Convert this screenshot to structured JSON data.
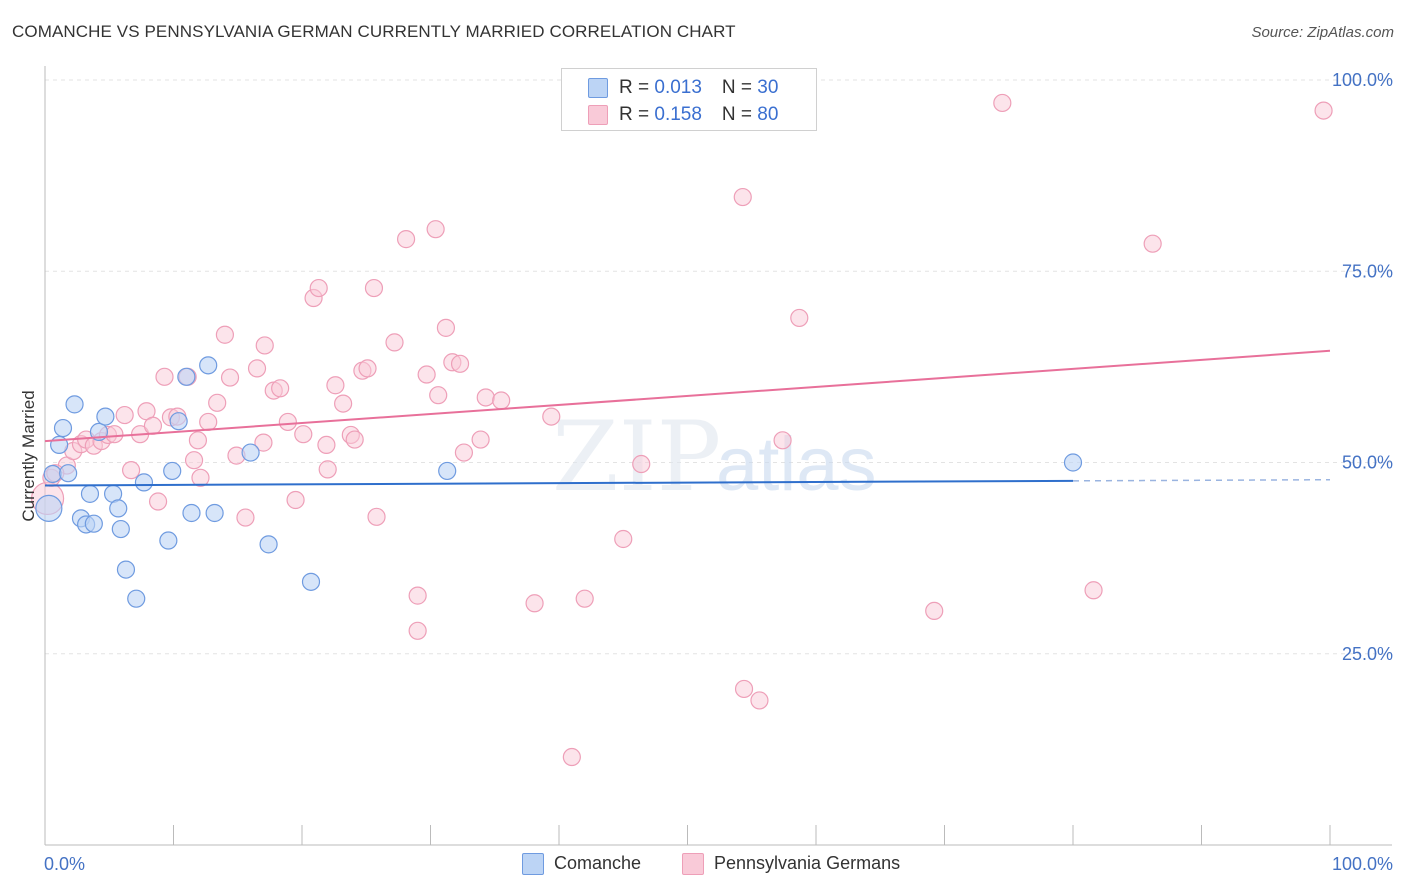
{
  "header": {
    "title": "COMANCHE VS PENNSYLVANIA GERMAN CURRENTLY MARRIED CORRELATION CHART",
    "source": "Source: ZipAtlas.com"
  },
  "colors": {
    "comanche_fill": "#bcd4f5",
    "comanche_stroke": "#6f9be0",
    "comanche_line": "#2f6fcc",
    "penn_fill": "#f9cad8",
    "penn_stroke": "#ee9fb8",
    "penn_line": "#e8709a",
    "label_blue": "#4472c4",
    "grid": "#e3e3e3"
  },
  "legend": {
    "rows": [
      {
        "r_label": "R = ",
        "r_value": "0.013",
        "n_label": "N = ",
        "n_value": "30"
      },
      {
        "r_label": "R = ",
        "r_value": "0.158",
        "n_label": "N = ",
        "n_value": "80"
      }
    ]
  },
  "bottom_legend": {
    "series1": "Comanche",
    "series2": "Pennsylvania Germans"
  },
  "watermark": {
    "zip": "ZIP",
    "atlas": "atlas"
  },
  "chart_data": {
    "type": "scatter",
    "title": "COMANCHE VS PENNSYLVANIA GERMAN CURRENTLY MARRIED CORRELATION CHART",
    "xlabel": "",
    "ylabel": "Currently Married",
    "xlim": [
      0,
      100
    ],
    "ylim": [
      0,
      100
    ],
    "x_tick_labels": {
      "left": "0.0%",
      "right": "100.0%"
    },
    "y_tick_labels": [
      {
        "value": 100,
        "label": "100.0%"
      },
      {
        "value": 75,
        "label": "75.0%"
      },
      {
        "value": 50,
        "label": "50.0%"
      },
      {
        "value": 25,
        "label": "25.0%"
      }
    ],
    "series": [
      {
        "name": "Comanche",
        "r": 0.013,
        "n": 30,
        "trend": {
          "x": [
            0,
            80
          ],
          "y": [
            47.0,
            47.6
          ],
          "dashed_extension": [
            80,
            100
          ]
        },
        "points": [
          [
            0.3,
            44.0
          ],
          [
            0.6,
            48.5
          ],
          [
            1.1,
            52.3
          ],
          [
            1.4,
            54.5
          ],
          [
            1.8,
            48.6
          ],
          [
            2.3,
            57.6
          ],
          [
            2.8,
            42.7
          ],
          [
            3.2,
            41.9
          ],
          [
            3.5,
            45.9
          ],
          [
            3.8,
            42.0
          ],
          [
            4.2,
            54.0
          ],
          [
            4.7,
            56.0
          ],
          [
            5.3,
            45.9
          ],
          [
            5.7,
            44.0
          ],
          [
            5.9,
            41.3
          ],
          [
            6.3,
            36.0
          ],
          [
            7.1,
            32.2
          ],
          [
            7.7,
            47.4
          ],
          [
            9.6,
            39.8
          ],
          [
            9.9,
            48.9
          ],
          [
            10.4,
            55.4
          ],
          [
            11.0,
            61.2
          ],
          [
            11.4,
            43.4
          ],
          [
            12.7,
            62.7
          ],
          [
            13.2,
            43.4
          ],
          [
            16.0,
            51.3
          ],
          [
            17.4,
            39.3
          ],
          [
            20.7,
            34.4
          ],
          [
            31.3,
            48.9
          ],
          [
            80.0,
            50.0
          ]
        ]
      },
      {
        "name": "Pennsylvania Germans",
        "r": 0.158,
        "n": 80,
        "trend": {
          "x": [
            0,
            100
          ],
          "y": [
            52.8,
            64.6
          ]
        },
        "points": [
          [
            0.2,
            45.3
          ],
          [
            0.5,
            48.0
          ],
          [
            1.7,
            49.6
          ],
          [
            2.2,
            51.5
          ],
          [
            2.8,
            52.4
          ],
          [
            3.2,
            53.0
          ],
          [
            3.8,
            52.2
          ],
          [
            4.4,
            52.8
          ],
          [
            4.9,
            53.6
          ],
          [
            5.4,
            53.7
          ],
          [
            6.2,
            56.2
          ],
          [
            6.7,
            49.0
          ],
          [
            7.4,
            53.7
          ],
          [
            7.9,
            56.7
          ],
          [
            8.4,
            54.8
          ],
          [
            8.8,
            44.9
          ],
          [
            9.3,
            61.2
          ],
          [
            9.8,
            55.9
          ],
          [
            10.3,
            56.0
          ],
          [
            11.1,
            61.2
          ],
          [
            11.6,
            50.3
          ],
          [
            11.9,
            52.9
          ],
          [
            12.7,
            55.3
          ],
          [
            13.4,
            57.8
          ],
          [
            14.0,
            66.7
          ],
          [
            14.4,
            61.1
          ],
          [
            14.9,
            50.9
          ],
          [
            15.6,
            42.8
          ],
          [
            16.5,
            62.3
          ],
          [
            17.1,
            65.3
          ],
          [
            17.0,
            52.6
          ],
          [
            17.8,
            59.4
          ],
          [
            18.3,
            59.7
          ],
          [
            18.9,
            55.3
          ],
          [
            19.5,
            45.1
          ],
          [
            20.1,
            53.7
          ],
          [
            20.9,
            71.5
          ],
          [
            21.3,
            72.8
          ],
          [
            21.9,
            52.3
          ],
          [
            22.6,
            60.1
          ],
          [
            23.2,
            57.7
          ],
          [
            23.8,
            53.6
          ],
          [
            24.1,
            53.0
          ],
          [
            24.7,
            62.0
          ],
          [
            25.1,
            62.3
          ],
          [
            25.6,
            72.8
          ],
          [
            25.8,
            42.9
          ],
          [
            27.2,
            65.7
          ],
          [
            28.1,
            79.2
          ],
          [
            29.0,
            32.6
          ],
          [
            29.0,
            28.0
          ],
          [
            29.7,
            61.5
          ],
          [
            30.4,
            80.5
          ],
          [
            30.6,
            58.8
          ],
          [
            31.2,
            67.6
          ],
          [
            31.7,
            63.1
          ],
          [
            32.3,
            62.9
          ],
          [
            32.6,
            51.3
          ],
          [
            33.9,
            53.0
          ],
          [
            34.3,
            58.5
          ],
          [
            35.5,
            58.1
          ],
          [
            38.1,
            31.6
          ],
          [
            39.4,
            56.0
          ],
          [
            41.0,
            11.5
          ],
          [
            42.0,
            32.2
          ],
          [
            46.4,
            49.8
          ],
          [
            54.3,
            84.7
          ],
          [
            54.4,
            20.4
          ],
          [
            55.6,
            18.9
          ],
          [
            57.4,
            52.9
          ],
          [
            58.7,
            68.9
          ],
          [
            74.5,
            97.0
          ],
          [
            69.2,
            30.6
          ],
          [
            81.6,
            33.3
          ],
          [
            86.2,
            78.6
          ],
          [
            99.5,
            96.0
          ],
          [
            0.8,
            48.6
          ],
          [
            12.1,
            48.0
          ],
          [
            22.0,
            49.1
          ],
          [
            45.0,
            40.0
          ]
        ]
      }
    ]
  }
}
